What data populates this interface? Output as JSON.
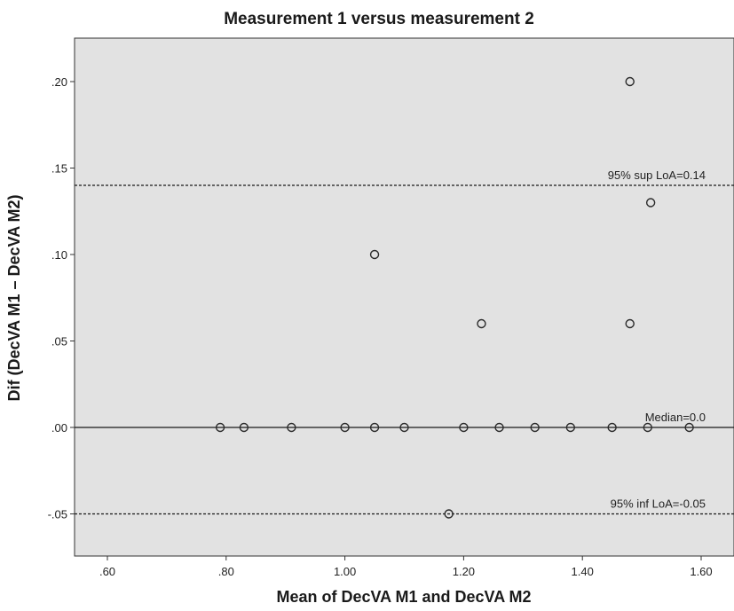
{
  "chart_data": {
    "type": "scatter",
    "title": "Measurement 1 versus measurement 2",
    "xlabel": "Mean of DecVA M1 and DecVA M2",
    "ylabel": "Dif (DecVA M1 – DecVA M2)",
    "xlim": [
      0.55,
      1.625
    ],
    "ylim": [
      -0.075,
      0.225
    ],
    "grid": false,
    "x_ticks": [
      0.6,
      0.8,
      1.0,
      1.2,
      1.4,
      1.6
    ],
    "x_tick_labels": [
      ".60",
      ".80",
      "1.00",
      "1.20",
      "1.40",
      "1.60"
    ],
    "y_ticks": [
      -0.05,
      0.0,
      0.05,
      0.1,
      0.15,
      0.2
    ],
    "y_tick_labels": [
      "-.05",
      ".00",
      ".05",
      ".10",
      ".15",
      ".20"
    ],
    "points": [
      {
        "x": 1.48,
        "y": 0.2
      },
      {
        "x": 1.515,
        "y": 0.13
      },
      {
        "x": 1.05,
        "y": 0.1
      },
      {
        "x": 1.23,
        "y": 0.06
      },
      {
        "x": 1.48,
        "y": 0.06
      },
      {
        "x": 0.79,
        "y": 0.0
      },
      {
        "x": 0.83,
        "y": 0.0
      },
      {
        "x": 0.91,
        "y": 0.0
      },
      {
        "x": 1.0,
        "y": 0.0
      },
      {
        "x": 1.05,
        "y": 0.0
      },
      {
        "x": 1.1,
        "y": 0.0
      },
      {
        "x": 1.2,
        "y": 0.0
      },
      {
        "x": 1.26,
        "y": 0.0
      },
      {
        "x": 1.32,
        "y": 0.0
      },
      {
        "x": 1.38,
        "y": 0.0
      },
      {
        "x": 1.45,
        "y": 0.0
      },
      {
        "x": 1.51,
        "y": 0.0
      },
      {
        "x": 1.58,
        "y": 0.0
      },
      {
        "x": 1.175,
        "y": -0.05
      }
    ],
    "reference_lines": [
      {
        "y": 0.14,
        "label": "95% sup LoA=0.14",
        "style": "dashed"
      },
      {
        "y": 0.0,
        "label": "Median=0.0",
        "style": "solid"
      },
      {
        "y": -0.05,
        "label": "95% inf LoA=-0.05",
        "style": "dashed"
      }
    ]
  },
  "colors": {
    "plot_background": "#e2e2e2",
    "marker_edge": "#2a2a2a",
    "line": "#1a1a1a"
  }
}
